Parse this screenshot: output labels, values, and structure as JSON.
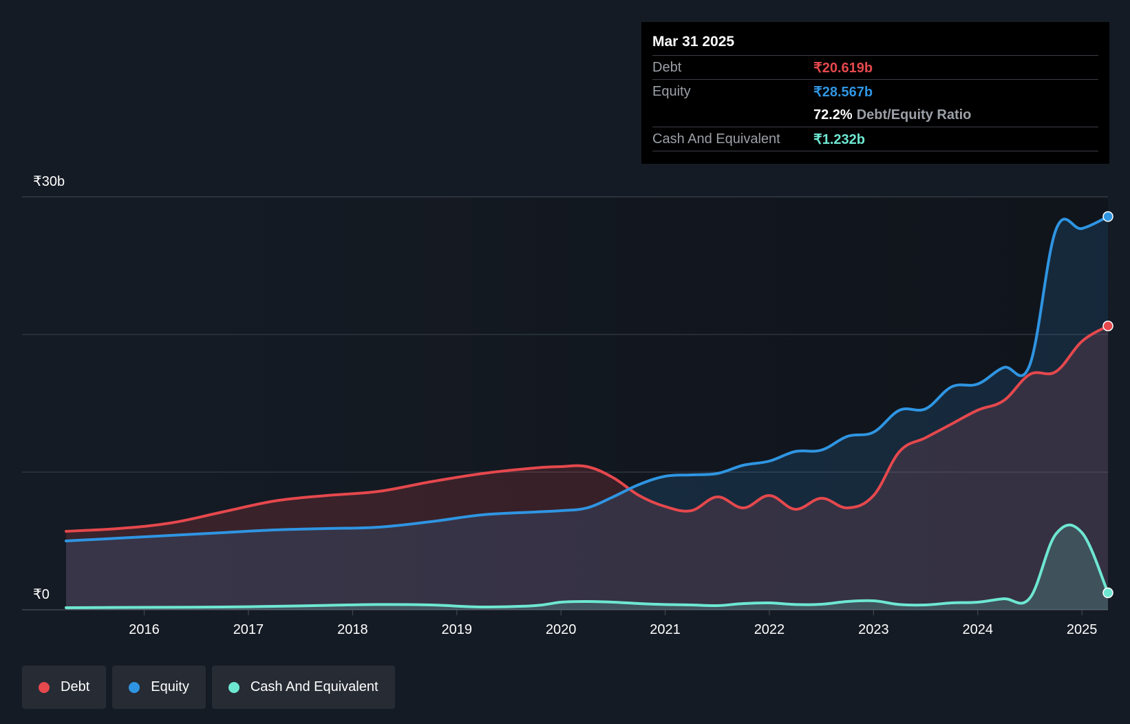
{
  "tooltip": {
    "date": "Mar 31 2025",
    "debt_label": "Debt",
    "debt_value": "₹20.619b",
    "equity_label": "Equity",
    "equity_value": "₹28.567b",
    "ratio_value": "72.2%",
    "ratio_label": "Debt/Equity Ratio",
    "cash_label": "Cash And Equivalent",
    "cash_value": "₹1.232b"
  },
  "legend": {
    "debt": "Debt",
    "equity": "Equity",
    "cash": "Cash And Equivalent"
  },
  "colors": {
    "debt": "#e5484d",
    "equity": "#2f95e2",
    "cash": "#6ee7d2",
    "background": "#151b24"
  },
  "chart_data": {
    "type": "area",
    "title": "",
    "xlabel": "",
    "ylabel": "",
    "y_tick_labels": [
      "₹30b",
      "₹0"
    ],
    "ylim": [
      0,
      30
    ],
    "y_unit": "₹b",
    "x_tick_labels": [
      "2016",
      "2017",
      "2018",
      "2019",
      "2020",
      "2021",
      "2022",
      "2023",
      "2024",
      "2025"
    ],
    "xlim": [
      2015.25,
      2025.25
    ],
    "gridlines": [
      0,
      10,
      20,
      30
    ],
    "legend_position": "bottom-left",
    "series": [
      {
        "name": "Debt",
        "x": [
          2015.25,
          2015.75,
          2016.25,
          2016.75,
          2017.25,
          2017.75,
          2018.25,
          2018.75,
          2019.25,
          2019.75,
          2020.0,
          2020.25,
          2020.5,
          2020.75,
          2021.0,
          2021.25,
          2021.5,
          2021.75,
          2022.0,
          2022.25,
          2022.5,
          2022.75,
          2023.0,
          2023.25,
          2023.5,
          2023.75,
          2024.0,
          2024.25,
          2024.5,
          2024.75,
          2025.0,
          2025.25
        ],
        "values": [
          5.7,
          5.9,
          6.3,
          7.1,
          7.9,
          8.3,
          8.6,
          9.3,
          9.9,
          10.3,
          10.4,
          10.4,
          9.6,
          8.3,
          7.5,
          7.2,
          8.2,
          7.4,
          8.3,
          7.3,
          8.1,
          7.4,
          8.3,
          11.5,
          12.5,
          13.5,
          14.5,
          15.2,
          17.1,
          17.3,
          19.5,
          20.619
        ]
      },
      {
        "name": "Equity",
        "x": [
          2015.25,
          2015.75,
          2016.25,
          2016.75,
          2017.25,
          2017.75,
          2018.25,
          2018.75,
          2019.25,
          2019.75,
          2020.0,
          2020.25,
          2020.5,
          2020.75,
          2021.0,
          2021.25,
          2021.5,
          2021.75,
          2022.0,
          2022.25,
          2022.5,
          2022.75,
          2023.0,
          2023.25,
          2023.5,
          2023.75,
          2024.0,
          2024.25,
          2024.5,
          2024.75,
          2025.0,
          2025.25
        ],
        "values": [
          5.0,
          5.2,
          5.4,
          5.6,
          5.8,
          5.9,
          6.0,
          6.4,
          6.9,
          7.1,
          7.2,
          7.4,
          8.2,
          9.1,
          9.7,
          9.8,
          9.9,
          10.5,
          10.8,
          11.5,
          11.6,
          12.6,
          12.9,
          14.5,
          14.6,
          16.2,
          16.4,
          17.6,
          17.8,
          27.6,
          27.7,
          28.567
        ]
      },
      {
        "name": "Cash And Equivalent",
        "x": [
          2015.25,
          2015.75,
          2016.25,
          2016.75,
          2017.25,
          2017.75,
          2018.25,
          2018.75,
          2019.25,
          2019.75,
          2020.0,
          2020.25,
          2020.5,
          2020.75,
          2021.0,
          2021.25,
          2021.5,
          2021.75,
          2022.0,
          2022.25,
          2022.5,
          2022.75,
          2023.0,
          2023.25,
          2023.5,
          2023.75,
          2024.0,
          2024.25,
          2024.5,
          2024.75,
          2025.0,
          2025.25
        ],
        "values": [
          0.15,
          0.17,
          0.18,
          0.2,
          0.25,
          0.32,
          0.38,
          0.35,
          0.2,
          0.3,
          0.55,
          0.6,
          0.55,
          0.45,
          0.38,
          0.35,
          0.3,
          0.45,
          0.5,
          0.38,
          0.4,
          0.6,
          0.65,
          0.38,
          0.35,
          0.5,
          0.55,
          0.8,
          0.85,
          5.5,
          5.6,
          1.232
        ]
      }
    ]
  }
}
